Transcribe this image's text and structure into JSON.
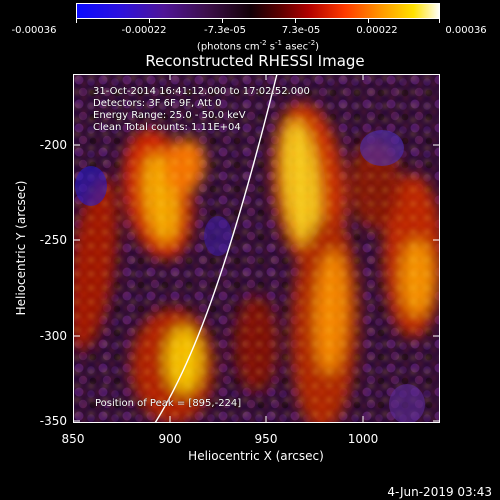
{
  "colorbar": {
    "tick_labels": [
      "-0.00036",
      "-0.00022",
      "-7.3e-05",
      "7.3e-05",
      "0.00022",
      "0.00036"
    ],
    "units_before": "(photons cm",
    "units_sup1": "-2",
    "units_mid1": " s",
    "units_sup2": "-1",
    "units_mid2": " asec",
    "units_sup3": "-2",
    "units_after": ")"
  },
  "title": "Reconstructed RHESSI Image",
  "info_lines": [
    "31-Oct-2014 16:41:12.000  to  17:02:52.000",
    "Detectors: 3F 6F 9F, Att 0",
    "Energy Range: 25.0 - 50.0 keV",
    "Clean     Total counts: 1.11E+04"
  ],
  "peak_text": "Position of Peak = [895,-224]",
  "axes": {
    "x_label": "Heliocentric X (arcsec)",
    "y_label": "Heliocentric Y (arcsec)",
    "x_ticks": [
      "850",
      "900",
      "950",
      "1000"
    ],
    "y_ticks": [
      "-200",
      "-250",
      "-300",
      "-350"
    ],
    "x_range": [
      850,
      1040
    ],
    "y_range": [
      -354,
      -171
    ]
  },
  "timestamp": "4-Jun-2019 03:43",
  "colors": {
    "background": "#000000",
    "limb_line": "#ffffff"
  }
}
